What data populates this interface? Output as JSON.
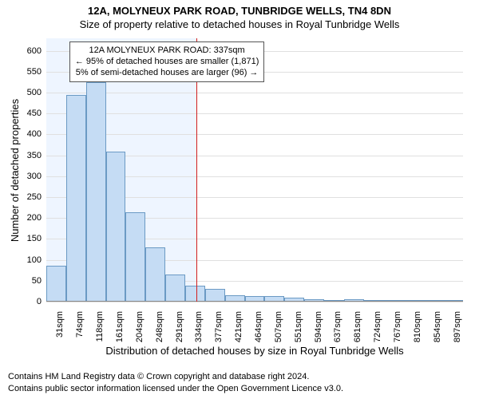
{
  "title": "12A, MOLYNEUX PARK ROAD, TUNBRIDGE WELLS, TN4 8DN",
  "subtitle": "Size of property relative to detached houses in Royal Tunbridge Wells",
  "y_axis_label": "Number of detached properties",
  "x_axis_label": "Distribution of detached houses by size in Royal Tunbridge Wells",
  "chart": {
    "type": "histogram",
    "ylim_min": 0,
    "ylim_max": 630,
    "ytick_step": 50,
    "grid_color": "#e0e0e0",
    "background_color": "#ffffff",
    "shaded_region_color": "#eef5ff",
    "bar_fill": "#c5dcf4",
    "bar_border": "#6b9ac4",
    "reference_line_color": "#d21f1f",
    "tick_fontsize": 11,
    "label_fontsize": 13,
    "reference_value": 337,
    "bins": [
      {
        "label": "31sqm",
        "mid": 31,
        "value": 85
      },
      {
        "label": "74sqm",
        "mid": 74,
        "value": 495
      },
      {
        "label": "118sqm",
        "mid": 118,
        "value": 525
      },
      {
        "label": "161sqm",
        "mid": 161,
        "value": 358
      },
      {
        "label": "204sqm",
        "mid": 204,
        "value": 213
      },
      {
        "label": "248sqm",
        "mid": 248,
        "value": 130
      },
      {
        "label": "291sqm",
        "mid": 291,
        "value": 65
      },
      {
        "label": "334sqm",
        "mid": 334,
        "value": 38
      },
      {
        "label": "377sqm",
        "mid": 377,
        "value": 30
      },
      {
        "label": "421sqm",
        "mid": 421,
        "value": 15
      },
      {
        "label": "464sqm",
        "mid": 464,
        "value": 14
      },
      {
        "label": "507sqm",
        "mid": 507,
        "value": 13
      },
      {
        "label": "551sqm",
        "mid": 551,
        "value": 10
      },
      {
        "label": "594sqm",
        "mid": 594,
        "value": 5
      },
      {
        "label": "637sqm",
        "mid": 637,
        "value": 2
      },
      {
        "label": "681sqm",
        "mid": 681,
        "value": 6
      },
      {
        "label": "724sqm",
        "mid": 724,
        "value": 2
      },
      {
        "label": "767sqm",
        "mid": 767,
        "value": 2
      },
      {
        "label": "810sqm",
        "mid": 810,
        "value": 4
      },
      {
        "label": "854sqm",
        "mid": 854,
        "value": 2
      },
      {
        "label": "897sqm",
        "mid": 897,
        "value": 3
      }
    ]
  },
  "annotation": {
    "line1": "12A MOLYNEUX PARK ROAD: 337sqm",
    "line2": "← 95% of detached houses are smaller (1,871)",
    "line3": "5% of semi-detached houses are larger (96) →"
  },
  "footer": {
    "line1": "Contains HM Land Registry data © Crown copyright and database right 2024.",
    "line2": "Contains public sector information licensed under the Open Government Licence v3.0."
  }
}
